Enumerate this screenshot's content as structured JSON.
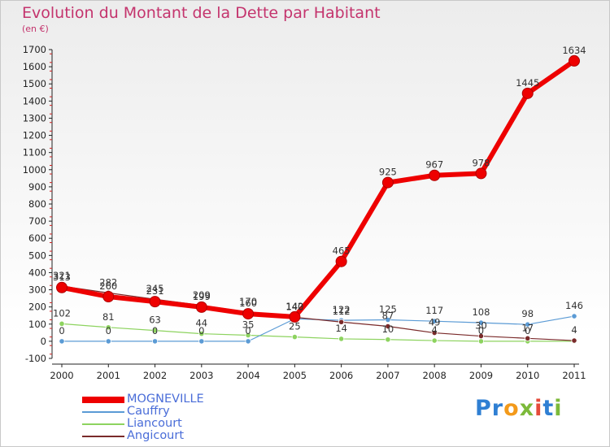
{
  "header": {
    "title": "Evolution du Montant de la Dette par Habitant",
    "subtitle": "(en €)"
  },
  "brand": {
    "letters": [
      "P",
      "r",
      "o",
      "x",
      "i",
      "t",
      "i"
    ],
    "colors": [
      "#2f7fd3",
      "#2f7fd3",
      "#f39a1b",
      "#7cba3a",
      "#e54b3a",
      "#2f7fd3",
      "#7cba3a"
    ]
  },
  "chart_data": {
    "type": "line",
    "title": "Evolution du Montant de la Dette par Habitant",
    "subtitle": "(en €)",
    "x": [
      "2000",
      "2001",
      "2002",
      "2003",
      "2004",
      "2005",
      "2006",
      "2007",
      "2008",
      "2009",
      "2010",
      "2011"
    ],
    "ylim": [
      -100,
      1700
    ],
    "yticks": [
      -100,
      0,
      100,
      200,
      300,
      400,
      500,
      600,
      700,
      800,
      900,
      1000,
      1100,
      1200,
      1300,
      1400,
      1500,
      1600,
      1700
    ],
    "grid": false,
    "legend_position": "bottom-left",
    "series": [
      {
        "name": "MOGNEVILLE",
        "color": "#ee0000",
        "values": [
          313,
          260,
          231,
          199,
          160,
          142,
          465,
          925,
          967,
          978,
          1445,
          1634
        ]
      },
      {
        "name": "Cauffry",
        "color": "#5b9bd5",
        "values": [
          0,
          0,
          0,
          0,
          0,
          131,
          122,
          125,
          117,
          108,
          98,
          146
        ]
      },
      {
        "name": "Liancourt",
        "color": "#8dd35f",
        "values": [
          102,
          81,
          63,
          44,
          35,
          25,
          14,
          10,
          4,
          0,
          0,
          0
        ]
      },
      {
        "name": "Angicourt",
        "color": "#7a2a2a",
        "values": [
          321,
          282,
          245,
          209,
          170,
          140,
          112,
          87,
          49,
          30,
          17,
          4
        ]
      }
    ],
    "value_labels": [
      [
        "313",
        "260",
        "231",
        "199",
        "160",
        "142",
        "465",
        "925",
        "967",
        "978",
        "1445",
        "1634"
      ],
      [
        "0",
        "0",
        "0",
        "0",
        "0",
        "",
        "122",
        "125",
        "117",
        "108",
        "98",
        "146"
      ],
      [
        "102",
        "81",
        "63",
        "44",
        "35",
        "25",
        "14",
        "10",
        "4",
        "0",
        "0",
        ""
      ],
      [
        "321",
        "282",
        "245",
        "209",
        "170",
        "140",
        "112",
        "87",
        "49",
        "30",
        "17",
        "4"
      ]
    ]
  }
}
